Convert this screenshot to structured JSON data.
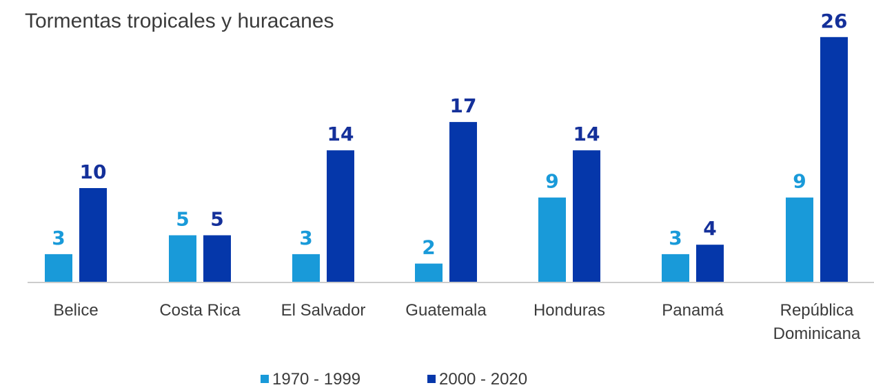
{
  "chart_data": {
    "type": "bar",
    "title": "Tormentas tropicales y huracanes",
    "categories": [
      [
        "Belice"
      ],
      [
        "Costa Rica"
      ],
      [
        "El Salvador"
      ],
      [
        "Guatemala"
      ],
      [
        "Honduras"
      ],
      [
        "Panamá"
      ],
      [
        "República",
        "Dominicana"
      ]
    ],
    "series": [
      {
        "name": "1970 - 1999",
        "color": "#199ad9",
        "label_color": "#199ad9",
        "values": [
          3,
          5,
          3,
          2,
          9,
          3,
          9
        ]
      },
      {
        "name": "2000 - 2020",
        "color": "#0537aa",
        "label_color": "#14309a",
        "values": [
          10,
          5,
          14,
          17,
          14,
          4,
          26
        ]
      }
    ],
    "ylim": [
      0,
      27
    ],
    "grid": false,
    "legend_position": "bottom",
    "baseline_color": "#cccccc"
  }
}
